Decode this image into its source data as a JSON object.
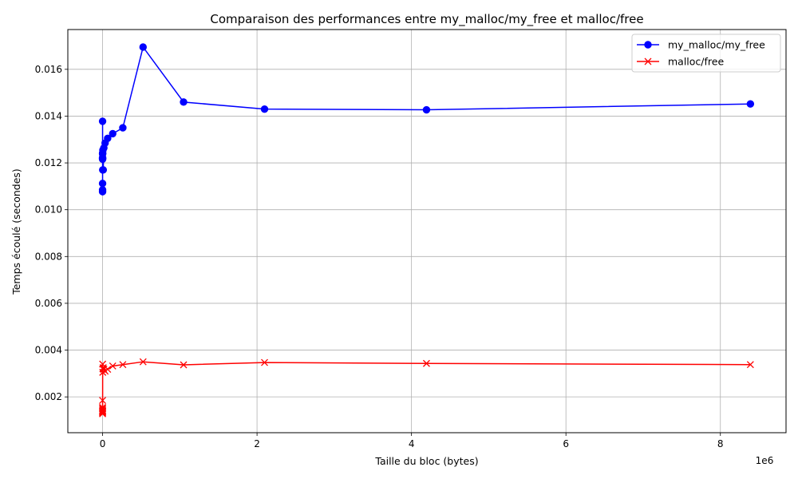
{
  "chart_data": {
    "type": "line",
    "title": "Comparaison des performances entre my_malloc/my_free et malloc/free",
    "xlabel": "Taille du bloc (bytes)",
    "ylabel": "Temps écoulé (secondes)",
    "x_offset_label": "1e6",
    "xlim": [
      -450000,
      8850000
    ],
    "ylim": [
      0.00047,
      0.0177
    ],
    "x_ticks": [
      0,
      2000000,
      4000000,
      6000000,
      8000000
    ],
    "x_tick_labels": [
      "0",
      "2",
      "4",
      "6",
      "8"
    ],
    "y_ticks": [
      0.002,
      0.004,
      0.006,
      0.008,
      0.01,
      0.012,
      0.014,
      0.016
    ],
    "y_tick_labels": [
      "0.002",
      "0.004",
      "0.006",
      "0.008",
      "0.010",
      "0.012",
      "0.014",
      "0.016"
    ],
    "grid": true,
    "legend_position": "upper right",
    "x": [
      1,
      2,
      4,
      8,
      16,
      32,
      64,
      128,
      256,
      512,
      1024,
      2048,
      4096,
      8192,
      16384,
      32768,
      65536,
      131072,
      262144,
      524288,
      1048576,
      2097152,
      4194304,
      8388608
    ],
    "series": [
      {
        "name": "my_malloc/my_free",
        "color": "#0000ff",
        "marker": "circle",
        "values": [
          0.01378,
          0.01085,
          0.01077,
          0.01112,
          0.01218,
          0.0122,
          0.01222,
          0.0124,
          0.01216,
          0.01238,
          0.01242,
          0.0117,
          0.01255,
          0.0117,
          0.01264,
          0.01285,
          0.01305,
          0.01325,
          0.0135,
          0.01695,
          0.0146,
          0.0143,
          0.01427,
          0.01452
        ]
      },
      {
        "name": "malloc/free",
        "color": "#ff0000",
        "marker": "x",
        "values": [
          0.00185,
          0.00132,
          0.00128,
          0.0014,
          0.00148,
          0.00155,
          0.00135,
          0.0015,
          0.00142,
          0.00138,
          0.0034,
          0.00305,
          0.0032,
          0.00325,
          0.00318,
          0.0031,
          0.00318,
          0.00332,
          0.00338,
          0.0035,
          0.00337,
          0.00347,
          0.00343,
          0.00338
        ]
      }
    ]
  }
}
